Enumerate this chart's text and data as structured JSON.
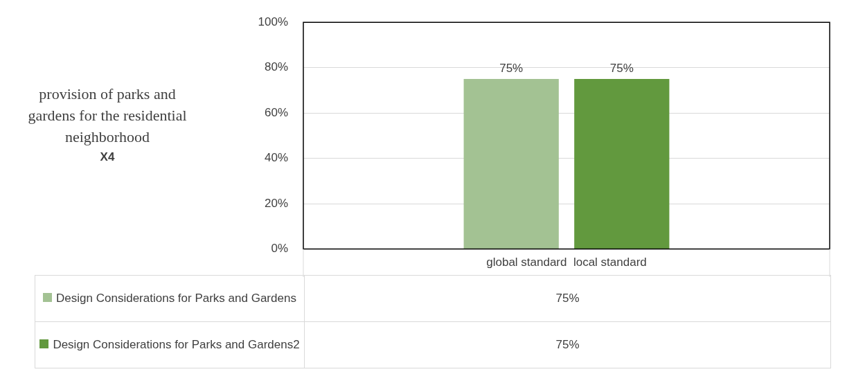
{
  "chart_data": {
    "type": "bar",
    "ylabel": "provision of parks and gardens for the residential neighborhood",
    "annotations": [
      "X4"
    ],
    "categories": [
      "global standard  local standard"
    ],
    "series": [
      {
        "name": "Design Considerations for Parks and Gardens",
        "color": "#a3c293",
        "values": [
          75
        ],
        "value_labels": [
          "75%"
        ]
      },
      {
        "name": "Design Considerations for Parks and Gardens2",
        "color": "#62993e",
        "values": [
          75
        ],
        "value_labels": [
          "75%"
        ]
      }
    ],
    "ylim": [
      0,
      100
    ],
    "yticks": [
      {
        "value": 0,
        "label": "0%"
      },
      {
        "value": 20,
        "label": "20%"
      },
      {
        "value": 40,
        "label": "40%"
      },
      {
        "value": 60,
        "label": "60%"
      },
      {
        "value": 80,
        "label": "80%"
      },
      {
        "value": 100,
        "label": "100%"
      }
    ],
    "grid": "y",
    "legend": "bottom"
  }
}
